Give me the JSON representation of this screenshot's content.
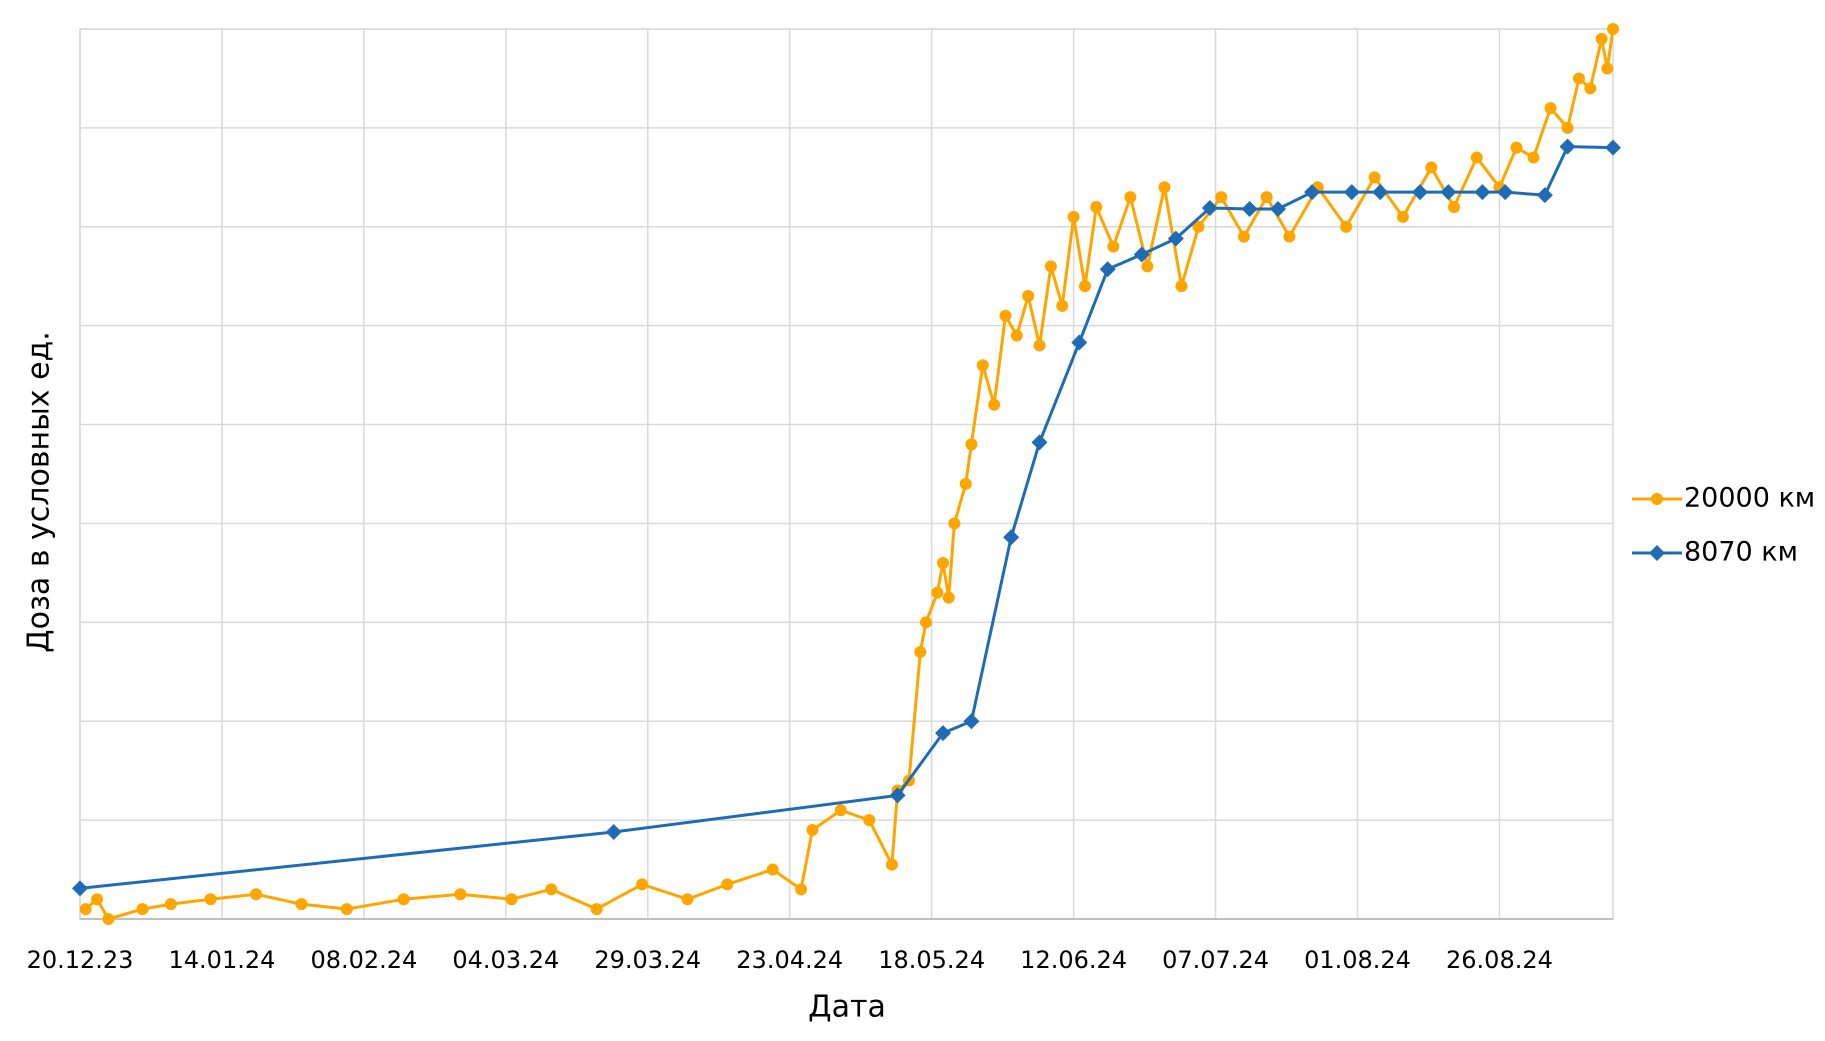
{
  "chart_data": {
    "type": "line",
    "x_title": "Дата",
    "y_title": "Доза в условных ед.",
    "xlim": [
      "20.12.23",
      "15.09.24"
    ],
    "xticks": [
      "20.12.23",
      "14.01.24",
      "08.02.24",
      "04.03.24",
      "29.03.24",
      "23.04.24",
      "18.05.24",
      "12.06.24",
      "07.07.24",
      "01.08.24",
      "26.08.24"
    ],
    "ylim": [
      0,
      9
    ],
    "yticks": [
      0,
      1,
      2,
      3,
      4,
      5,
      6,
      7,
      8,
      9
    ],
    "show_ytick_labels": false,
    "grid": true,
    "legend_position": "right",
    "series": [
      {
        "name": "20000 км",
        "color": "#ffa500",
        "marker": "circle",
        "x": [
          "21.12.23",
          "23.12.23",
          "25.12.23",
          "31.12.23",
          "05.01.24",
          "12.01.24",
          "20.01.24",
          "28.01.24",
          "05.02.24",
          "15.02.24",
          "25.02.24",
          "05.03.24",
          "12.03.24",
          "20.03.24",
          "28.03.24",
          "05.04.24",
          "12.04.24",
          "20.04.24",
          "25.04.24",
          "27.04.24",
          "02.05.24",
          "07.05.24",
          "11.05.24",
          "12.05.24",
          "14.05.24",
          "16.05.24",
          "17.05.24",
          "19.05.24",
          "20.05.24",
          "21.05.24",
          "22.05.24",
          "24.05.24",
          "25.05.24",
          "27.05.24",
          "29.05.24",
          "31.05.24",
          "02.06.24",
          "04.06.24",
          "06.06.24",
          "08.06.24",
          "10.06.24",
          "12.06.24",
          "14.06.24",
          "16.06.24",
          "19.06.24",
          "22.06.24",
          "25.06.24",
          "28.06.24",
          "01.07.24",
          "04.07.24",
          "08.07.24",
          "12.07.24",
          "16.07.24",
          "20.07.24",
          "25.07.24",
          "30.07.24",
          "04.08.24",
          "09.08.24",
          "14.08.24",
          "18.08.24",
          "22.08.24",
          "26.08.24",
          "29.08.24",
          "01.09.24",
          "04.09.24",
          "07.09.24",
          "09.09.24",
          "11.09.24",
          "13.09.24",
          "14.09.24",
          "15.09.24"
        ],
        "values": [
          0.1,
          0.2,
          0.0,
          0.1,
          0.15,
          0.2,
          0.25,
          0.15,
          0.1,
          0.2,
          0.25,
          0.2,
          0.3,
          0.1,
          0.35,
          0.2,
          0.35,
          0.5,
          0.3,
          0.9,
          1.1,
          1.0,
          0.55,
          1.3,
          1.4,
          2.7,
          3.0,
          3.3,
          3.6,
          3.25,
          4.0,
          4.4,
          4.8,
          5.6,
          5.2,
          6.1,
          5.9,
          6.3,
          5.8,
          6.6,
          6.2,
          7.1,
          6.4,
          7.2,
          6.8,
          7.3,
          6.6,
          7.4,
          6.4,
          7.0,
          7.3,
          6.9,
          7.3,
          6.9,
          7.4,
          7.0,
          7.5,
          7.1,
          7.6,
          7.2,
          7.7,
          7.4,
          7.8,
          7.7,
          8.2,
          8.0,
          8.5,
          8.4,
          8.9,
          8.6,
          9.0
        ]
      },
      {
        "name": "8070 км",
        "color": "#1f6cb5",
        "marker": "diamond",
        "x": [
          "20.12.23",
          "23.03.24",
          "12.05.24",
          "20.05.24",
          "25.05.24",
          "01.06.24",
          "06.06.24",
          "13.06.24",
          "18.06.24",
          "24.06.24",
          "30.06.24",
          "06.07.24",
          "13.07.24",
          "18.07.24",
          "24.07.24",
          "31.07.24",
          "05.08.24",
          "12.08.24",
          "17.08.24",
          "23.08.24",
          "27.08.24",
          "03.09.24",
          "07.09.24",
          "15.09.24"
        ],
        "values": [
          0.31,
          0.88,
          1.25,
          1.88,
          2.0,
          3.86,
          4.82,
          5.83,
          6.57,
          6.72,
          6.88,
          7.19,
          7.18,
          7.18,
          7.35,
          7.35,
          7.35,
          7.35,
          7.35,
          7.35,
          7.35,
          7.32,
          7.81,
          7.8
        ]
      }
    ]
  }
}
